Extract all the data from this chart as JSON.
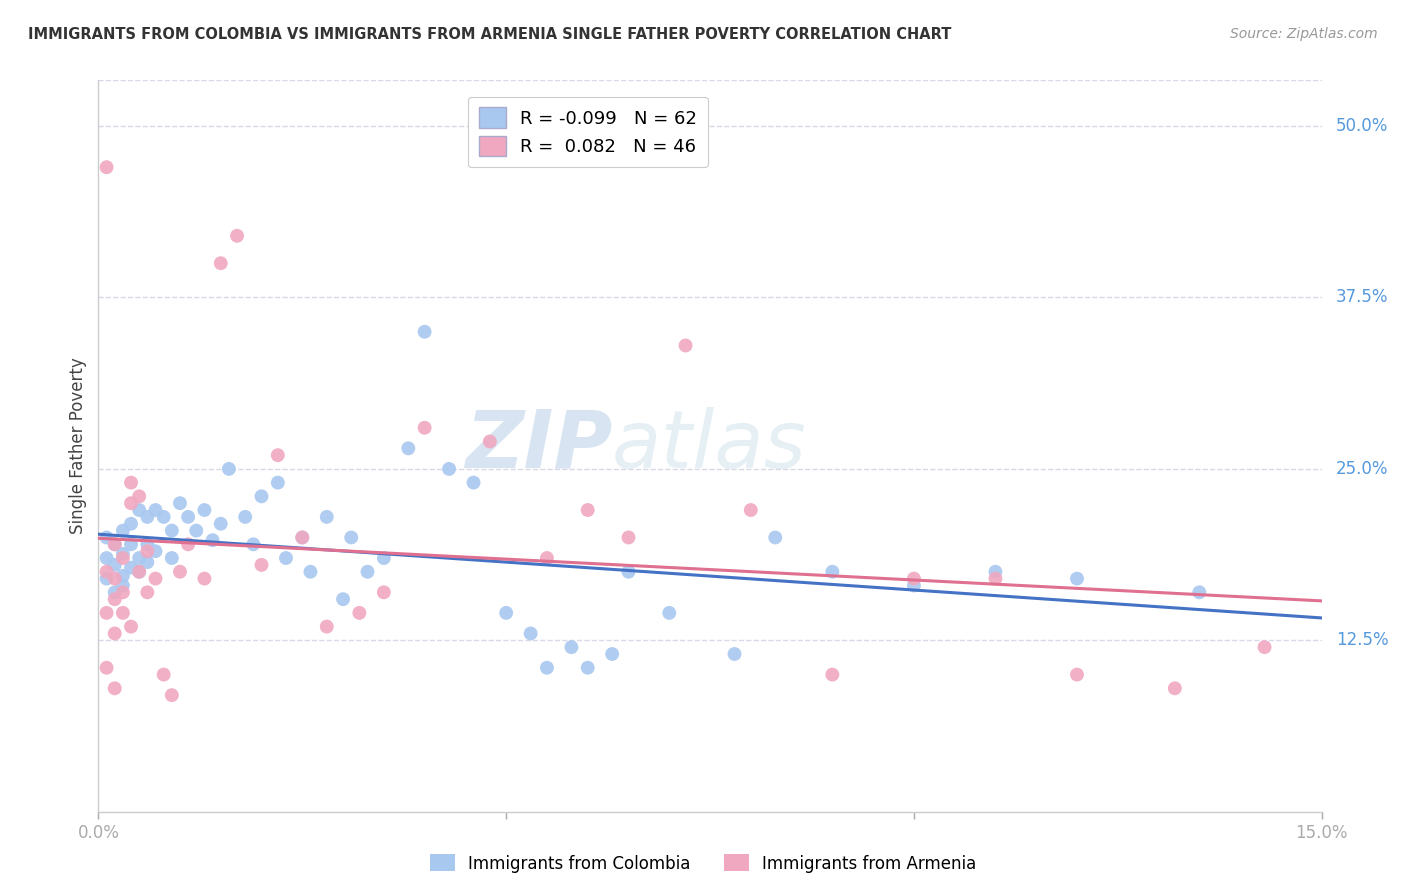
{
  "title": "IMMIGRANTS FROM COLOMBIA VS IMMIGRANTS FROM ARMENIA SINGLE FATHER POVERTY CORRELATION CHART",
  "source": "Source: ZipAtlas.com",
  "ylabel": "Single Father Poverty",
  "right_yticks": [
    "50.0%",
    "37.5%",
    "25.0%",
    "12.5%"
  ],
  "right_ytick_vals": [
    0.5,
    0.375,
    0.25,
    0.125
  ],
  "xlim": [
    0.0,
    0.15
  ],
  "ylim": [
    0.0,
    0.5334
  ],
  "colombia_color": "#a8c8f0",
  "armenia_color": "#f0a8c0",
  "colombia_line_color": "#4472c4",
  "armenia_line_color": "#e07090",
  "colombia_R": -0.099,
  "colombia_N": 62,
  "armenia_R": 0.082,
  "armenia_N": 46,
  "watermark_zip": "ZIP",
  "watermark_atlas": "atlas",
  "legend_label_colombia": "Immigrants from Colombia",
  "legend_label_armenia": "Immigrants from Armenia",
  "colombia_x": [
    0.001,
    0.001,
    0.001,
    0.002,
    0.002,
    0.002,
    0.003,
    0.003,
    0.003,
    0.003,
    0.004,
    0.004,
    0.004,
    0.005,
    0.005,
    0.005,
    0.006,
    0.006,
    0.006,
    0.007,
    0.007,
    0.008,
    0.009,
    0.009,
    0.01,
    0.011,
    0.012,
    0.013,
    0.014,
    0.015,
    0.016,
    0.018,
    0.019,
    0.02,
    0.022,
    0.023,
    0.025,
    0.026,
    0.028,
    0.03,
    0.031,
    0.033,
    0.035,
    0.038,
    0.04,
    0.043,
    0.046,
    0.05,
    0.053,
    0.055,
    0.058,
    0.06,
    0.063,
    0.065,
    0.07,
    0.078,
    0.083,
    0.09,
    0.1,
    0.11,
    0.12,
    0.135
  ],
  "colombia_y": [
    0.2,
    0.185,
    0.17,
    0.195,
    0.18,
    0.16,
    0.205,
    0.188,
    0.172,
    0.165,
    0.21,
    0.195,
    0.178,
    0.22,
    0.185,
    0.175,
    0.215,
    0.195,
    0.182,
    0.22,
    0.19,
    0.215,
    0.205,
    0.185,
    0.225,
    0.215,
    0.205,
    0.22,
    0.198,
    0.21,
    0.25,
    0.215,
    0.195,
    0.23,
    0.24,
    0.185,
    0.2,
    0.175,
    0.215,
    0.155,
    0.2,
    0.175,
    0.185,
    0.265,
    0.35,
    0.25,
    0.24,
    0.145,
    0.13,
    0.105,
    0.12,
    0.105,
    0.115,
    0.175,
    0.145,
    0.115,
    0.2,
    0.175,
    0.165,
    0.175,
    0.17,
    0.16
  ],
  "armenia_x": [
    0.001,
    0.001,
    0.001,
    0.001,
    0.002,
    0.002,
    0.002,
    0.002,
    0.002,
    0.003,
    0.003,
    0.003,
    0.004,
    0.004,
    0.004,
    0.005,
    0.005,
    0.006,
    0.006,
    0.007,
    0.008,
    0.009,
    0.01,
    0.011,
    0.013,
    0.015,
    0.017,
    0.02,
    0.022,
    0.025,
    0.028,
    0.032,
    0.035,
    0.04,
    0.048,
    0.055,
    0.06,
    0.065,
    0.072,
    0.08,
    0.09,
    0.1,
    0.11,
    0.12,
    0.132,
    0.143
  ],
  "armenia_y": [
    0.47,
    0.175,
    0.145,
    0.105,
    0.195,
    0.17,
    0.155,
    0.13,
    0.09,
    0.185,
    0.16,
    0.145,
    0.24,
    0.225,
    0.135,
    0.23,
    0.175,
    0.19,
    0.16,
    0.17,
    0.1,
    0.085,
    0.175,
    0.195,
    0.17,
    0.4,
    0.42,
    0.18,
    0.26,
    0.2,
    0.135,
    0.145,
    0.16,
    0.28,
    0.27,
    0.185,
    0.22,
    0.2,
    0.34,
    0.22,
    0.1,
    0.17,
    0.17,
    0.1,
    0.09,
    0.12
  ],
  "background_color": "#ffffff",
  "grid_color": "#d8d8e8"
}
